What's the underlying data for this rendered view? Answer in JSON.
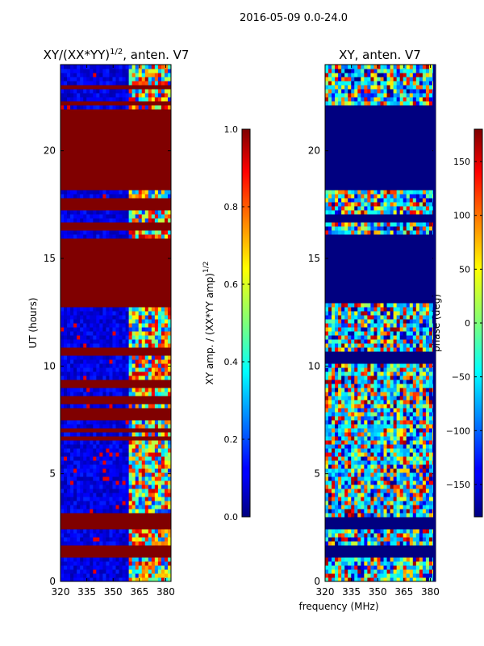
{
  "figure_title": "2016-05-09 0.0-24.0",
  "shared_xlabel": "frequency (MHz)",
  "chart_data": [
    {
      "type": "heatmap",
      "title": "XY/(XX*YY)^1/2, anten. V7",
      "title_main": "XY/(XX*YY)",
      "title_sup": "1/2",
      "title_rest": ", anten. V7",
      "xlabel": "frequency (MHz)",
      "ylabel": "UT (hours)",
      "xlim": [
        320,
        383
      ],
      "ylim": [
        0,
        24
      ],
      "xticks": [
        320,
        335,
        350,
        365,
        380
      ],
      "yticks": [
        0,
        5,
        10,
        15,
        20
      ],
      "colorbar": {
        "label": "XY amp. / (XX*YY amp)^1/2",
        "label_main": "XY amp. / (XX*YY amp)",
        "label_sup": "1/2",
        "range": [
          0.0,
          1.0
        ],
        "ticks": [
          0.0,
          0.2,
          0.4,
          0.6,
          0.8,
          1.0
        ],
        "tick_labels": [
          "0.0",
          "0.2",
          "0.4",
          "0.6",
          "0.8",
          "1.0"
        ]
      },
      "saturated_bands_hours": [
        [
          1.2,
          1.6
        ],
        [
          2.5,
          3.1
        ],
        [
          6.6,
          6.8
        ],
        [
          7.0,
          7.2
        ],
        [
          7.5,
          8.0
        ],
        [
          8.2,
          8.6
        ],
        [
          9.0,
          9.3
        ],
        [
          10.5,
          10.8
        ],
        [
          12.8,
          16.0
        ],
        [
          16.3,
          16.6
        ],
        [
          17.3,
          17.9
        ],
        [
          18.1,
          21.9
        ],
        [
          22.2,
          22.4
        ],
        [
          22.8,
          23.0
        ]
      ],
      "structured_region_mhz": [
        358,
        383
      ]
    },
    {
      "type": "heatmap",
      "title": "XY, anten. V7",
      "xlabel": "frequency (MHz)",
      "ylabel": "",
      "xlim": [
        320,
        383
      ],
      "ylim": [
        0,
        24
      ],
      "xticks": [
        320,
        335,
        350,
        365,
        380
      ],
      "yticks": [
        0,
        5,
        10,
        15,
        20
      ],
      "colorbar": {
        "label": "phase (deg)",
        "range": [
          -180,
          180
        ],
        "ticks": [
          150,
          100,
          50,
          0,
          -50,
          -100,
          -150
        ],
        "tick_labels": [
          "150",
          "100",
          "50",
          "0",
          "−50",
          "−100",
          "−150"
        ]
      },
      "blank_bands_hours": [
        [
          1.1,
          1.6
        ],
        [
          2.4,
          3.0
        ],
        [
          10.2,
          10.6
        ],
        [
          12.9,
          16.2
        ],
        [
          16.6,
          17.1
        ],
        [
          18.1,
          22.2
        ]
      ]
    }
  ],
  "colors": {
    "jet_low": "#00007f",
    "jet_high": "#7f0000",
    "axes": "#000000",
    "background": "#ffffff"
  }
}
